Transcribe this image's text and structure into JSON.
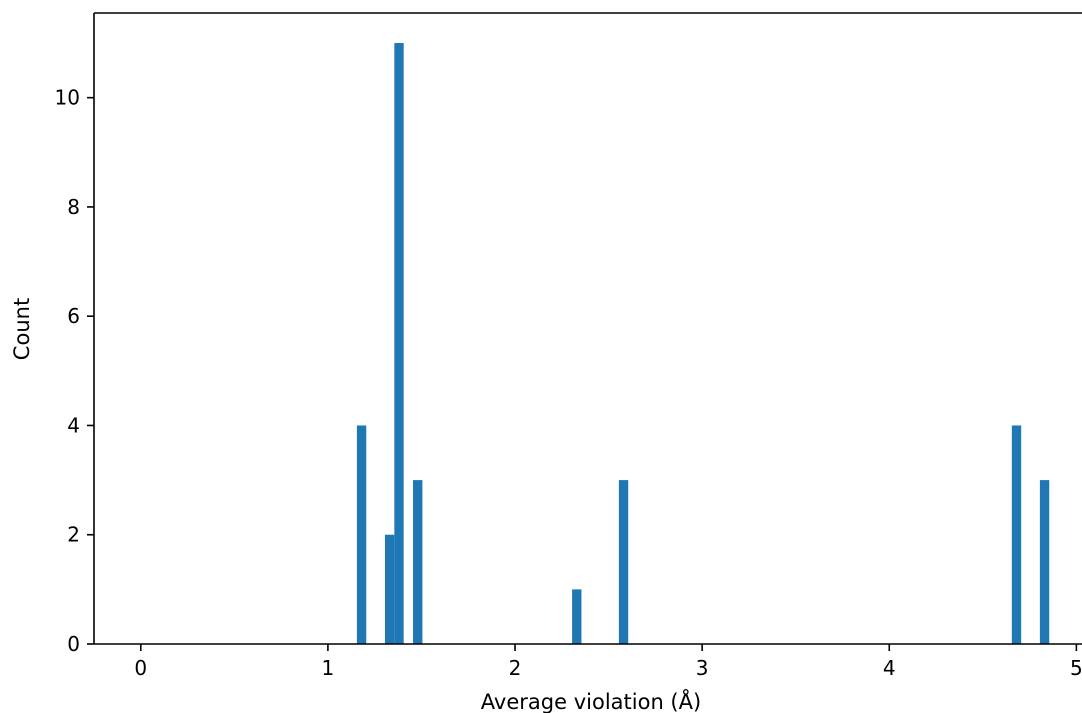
{
  "chart_data": {
    "type": "bar",
    "xlabel": "Average violation (Å)",
    "ylabel": "Count",
    "xlim": [
      -0.25,
      5.03
    ],
    "ylim": [
      0,
      11.55
    ],
    "xticks": [
      0,
      1,
      2,
      3,
      4,
      5
    ],
    "yticks": [
      0,
      2,
      4,
      6,
      8,
      10
    ],
    "bar_width": 0.05,
    "bar_color": "#1f77b4",
    "grid": false,
    "series": [
      {
        "x": [
          1.18,
          1.33,
          1.38,
          1.48,
          2.33,
          2.58,
          4.68,
          4.83
        ],
        "values": [
          4,
          2,
          11,
          3,
          1,
          3,
          4,
          3
        ]
      }
    ]
  }
}
